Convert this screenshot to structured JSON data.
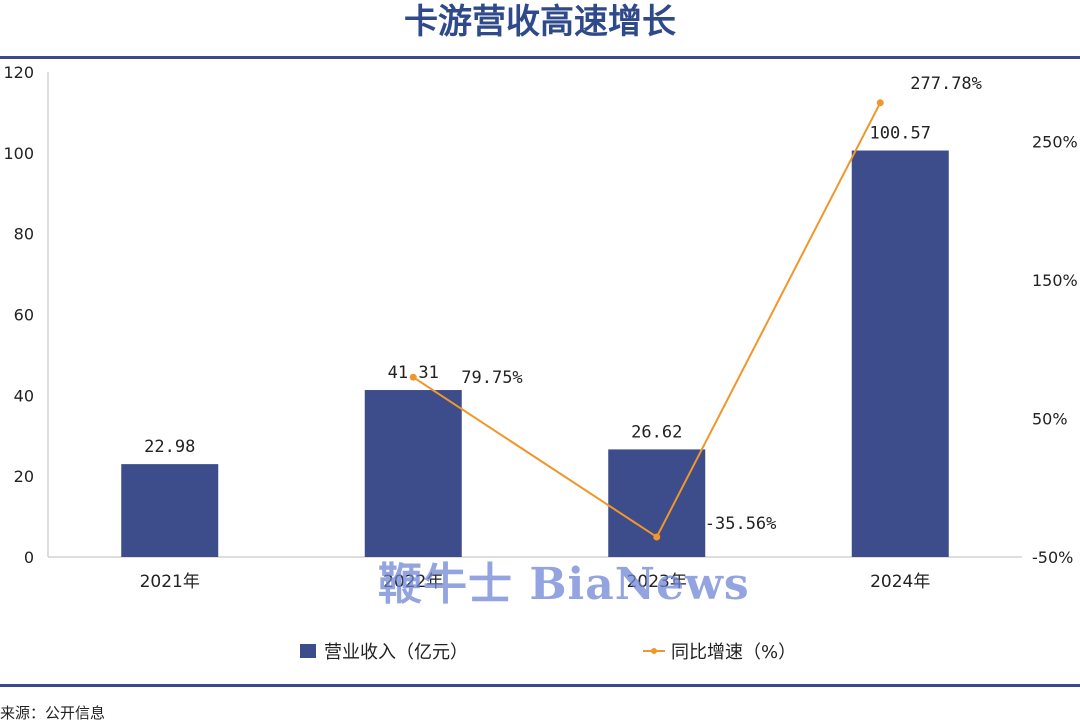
{
  "title": "卡游营收高速增长",
  "source": "来源：公开信息",
  "watermark": "鞭牛士 BiaNews",
  "colors": {
    "bar": "#3d4c8a",
    "line": "#f0962b",
    "rule": "#3b4a8a",
    "title": "#2f4a8a"
  },
  "legend": {
    "bar_label": "营业收入（亿元）",
    "line_label": "同比增速（%）"
  },
  "chart_data": {
    "type": "bar",
    "categories": [
      "2021年",
      "2022年",
      "2023年",
      "2024年"
    ],
    "series": [
      {
        "name": "营业收入（亿元）",
        "type": "bar",
        "axis": "left",
        "values": [
          22.98,
          41.31,
          26.62,
          100.57
        ],
        "labels": [
          "22.98",
          "41.31",
          "26.62",
          "100.57"
        ]
      },
      {
        "name": "同比增速（%）",
        "type": "line",
        "axis": "right",
        "values": [
          null,
          79.75,
          -35.56,
          277.78
        ],
        "labels": [
          "",
          "79.75%",
          "-35.56%",
          "277.78%"
        ]
      }
    ],
    "ylim_left": [
      0,
      120
    ],
    "yticks_left": [
      "0",
      "20",
      "40",
      "60",
      "80",
      "100",
      "120"
    ],
    "ylim_right": [
      -50,
      300
    ],
    "yticks_right": [
      "-50%",
      "50%",
      "150%",
      "250%"
    ],
    "legend_position": "bottom",
    "grid": false
  }
}
